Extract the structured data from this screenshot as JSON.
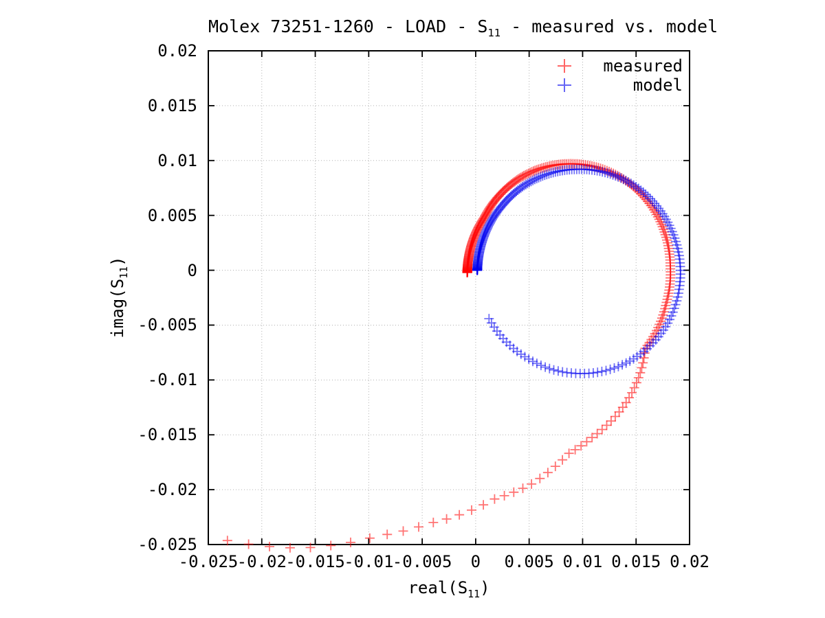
{
  "title": {
    "pre": "Molex 73251-1260 - LOAD - S",
    "sub": "11",
    "post": " - measured vs. model"
  },
  "axes": {
    "x": {
      "label_pre": "real(S",
      "label_sub": "11",
      "label_post": ")",
      "ticks": [
        "-0.025",
        "-0.02",
        "-0.015",
        "-0.01",
        "-0.005",
        "0",
        "0.005",
        "0.01",
        "0.015",
        "0.02"
      ],
      "tick_values": [
        -0.025,
        -0.02,
        -0.015,
        -0.01,
        -0.005,
        0,
        0.005,
        0.01,
        0.015,
        0.02
      ]
    },
    "y": {
      "label_pre": "imag(S",
      "label_sub": "11",
      "label_post": ")",
      "ticks": [
        "0.02",
        "0.015",
        "0.01",
        "0.005",
        "0",
        "-0.005",
        "-0.01",
        "-0.015",
        "-0.02",
        "-0.025"
      ],
      "tick_values": [
        0.02,
        0.015,
        0.01,
        0.005,
        0,
        -0.005,
        -0.01,
        -0.015,
        -0.02,
        -0.025
      ]
    }
  },
  "legend": {
    "items": [
      {
        "label": "measured",
        "color": "#ff0000"
      },
      {
        "label": "model",
        "color": "#0000ee"
      }
    ]
  },
  "chart_data": {
    "type": "scatter",
    "marker": "plus",
    "marker_opacity": 0.55,
    "grid": true,
    "legend_position": "top-right-inside",
    "xlim": [
      -0.025,
      0.02
    ],
    "ylim": [
      -0.025,
      0.02
    ],
    "xlabel": "real(S11)",
    "ylabel": "imag(S11)",
    "title": "Molex 73251-1260 - LOAD - S11 - measured vs. model",
    "series": [
      {
        "name": "measured",
        "color": "#ff0000",
        "shape": "outward spiral in complex plane, dense at start near origin, sparse tail sweeping to lower-left corner",
        "center": [
          0.0087,
          0.0003
        ],
        "theta_start_deg": 183,
        "theta_end_deg": -142,
        "n_points": 300,
        "density_exponent": 2,
        "radius_profile": [
          [
            183,
            0.0095
          ],
          [
            150,
            0.0091
          ],
          [
            120,
            0.0093
          ],
          [
            90,
            0.0094
          ],
          [
            60,
            0.0095
          ],
          [
            30,
            0.0095
          ],
          [
            0,
            0.0095
          ],
          [
            -20,
            0.0097
          ],
          [
            -46,
            0.0103
          ],
          [
            -66,
            0.0134
          ],
          [
            -75,
            0.0147
          ],
          [
            -82,
            0.0157
          ],
          [
            -90,
            0.017
          ],
          [
            -100,
            0.0201
          ],
          [
            -108,
            0.0222
          ],
          [
            -119,
            0.0267
          ],
          [
            -126,
            0.0303
          ],
          [
            -134,
            0.0356
          ],
          [
            -142,
            0.0405
          ]
        ],
        "key_points": [
          [
            -0.0008,
            0.0
          ],
          [
            0.0008,
            0.0048
          ],
          [
            0.0087,
            0.0097
          ],
          [
            0.0182,
            0.0
          ],
          [
            0.0159,
            -0.0069
          ],
          [
            0.0142,
            -0.0119
          ],
          [
            0.0108,
            -0.0152
          ],
          [
            0.0092,
            -0.0167
          ],
          [
            0.0054,
            -0.0193
          ],
          [
            0.0007,
            -0.0214
          ],
          [
            -0.0054,
            -0.0232
          ],
          [
            -0.0125,
            -0.0246
          ],
          [
            -0.0189,
            -0.0249
          ],
          [
            -0.0232,
            -0.0246
          ]
        ]
      },
      {
        "name": "model",
        "color": "#0000ee",
        "shape": "nearly closed circular loop in complex plane, dense at start near origin, ends inside lower half",
        "center": [
          0.00955,
          0.0
        ],
        "theta_start_deg": 180,
        "theta_end_deg": -152,
        "n_points": 240,
        "density_exponent": 2,
        "radius_profile": [
          [
            180,
            0.0094
          ],
          [
            140,
            0.0092
          ],
          [
            90,
            0.0092
          ],
          [
            45,
            0.0094
          ],
          [
            0,
            0.0096
          ],
          [
            -30,
            0.0097
          ],
          [
            -60,
            0.0096
          ],
          [
            -92,
            0.0094
          ],
          [
            -120,
            0.0093
          ],
          [
            -152,
            0.0094
          ]
        ],
        "key_points": [
          [
            0.0001,
            0.0
          ],
          [
            0.002,
            0.005
          ],
          [
            0.0096,
            0.0092
          ],
          [
            0.0191,
            0.0
          ],
          [
            0.018,
            -0.0049
          ],
          [
            0.0153,
            -0.0077
          ],
          [
            0.0092,
            -0.0094
          ],
          [
            0.0049,
            -0.0081
          ],
          [
            0.0012,
            -0.0044
          ]
        ]
      }
    ]
  }
}
